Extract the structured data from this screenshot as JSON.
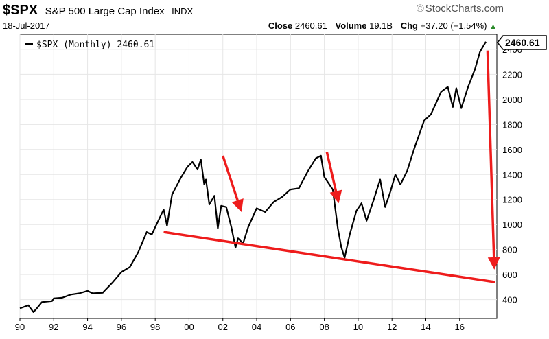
{
  "header": {
    "ticker": "$SPX",
    "name": "S&P 500 Large Cap Index",
    "exchange": "INDX",
    "brand": "StockCharts.com",
    "brand_icon": "copyright-icon",
    "date": "18-Jul-2017",
    "close_label": "Close",
    "close_value": "2460.61",
    "volume_label": "Volume",
    "volume_value": "19.1B",
    "chg_label": "Chg",
    "chg_value": "+37.20 (+1.54%)",
    "chg_arrow": "▲"
  },
  "legend": {
    "label": "$SPX (Monthly) 2460.61"
  },
  "price_tag": "2460.61",
  "colors": {
    "line": "#000000",
    "annotation": "#ee1c1c",
    "grid": "#e6e6e6"
  },
  "chart_data": {
    "type": "line",
    "title": "$SPX S&P 500 Large Cap Index INDX",
    "series": [
      {
        "name": "$SPX (Monthly)",
        "points": [
          [
            1990.0,
            330
          ],
          [
            1990.5,
            355
          ],
          [
            1990.8,
            300
          ],
          [
            1991.0,
            330
          ],
          [
            1991.3,
            380
          ],
          [
            1991.9,
            388
          ],
          [
            1992.0,
            410
          ],
          [
            1992.5,
            415
          ],
          [
            1993.0,
            440
          ],
          [
            1993.5,
            450
          ],
          [
            1994.0,
            470
          ],
          [
            1994.3,
            450
          ],
          [
            1994.9,
            455
          ],
          [
            1995.0,
            470
          ],
          [
            1995.5,
            540
          ],
          [
            1996.0,
            620
          ],
          [
            1996.5,
            660
          ],
          [
            1997.0,
            780
          ],
          [
            1997.5,
            940
          ],
          [
            1997.8,
            920
          ],
          [
            1998.0,
            980
          ],
          [
            1998.5,
            1120
          ],
          [
            1998.7,
            990
          ],
          [
            1998.9,
            1160
          ],
          [
            1999.0,
            1240
          ],
          [
            1999.5,
            1370
          ],
          [
            1999.9,
            1460
          ],
          [
            2000.2,
            1500
          ],
          [
            2000.5,
            1440
          ],
          [
            2000.7,
            1520
          ],
          [
            2000.9,
            1320
          ],
          [
            2001.0,
            1360
          ],
          [
            2001.2,
            1160
          ],
          [
            2001.5,
            1230
          ],
          [
            2001.7,
            970
          ],
          [
            2001.9,
            1150
          ],
          [
            2002.2,
            1140
          ],
          [
            2002.5,
            980
          ],
          [
            2002.75,
            815
          ],
          [
            2002.9,
            890
          ],
          [
            2003.2,
            850
          ],
          [
            2003.5,
            980
          ],
          [
            2004.0,
            1130
          ],
          [
            2004.5,
            1100
          ],
          [
            2005.0,
            1180
          ],
          [
            2005.5,
            1220
          ],
          [
            2006.0,
            1280
          ],
          [
            2006.5,
            1290
          ],
          [
            2007.0,
            1420
          ],
          [
            2007.5,
            1530
          ],
          [
            2007.8,
            1550
          ],
          [
            2008.0,
            1380
          ],
          [
            2008.5,
            1280
          ],
          [
            2008.8,
            970
          ],
          [
            2009.0,
            820
          ],
          [
            2009.2,
            735
          ],
          [
            2009.5,
            920
          ],
          [
            2009.9,
            1110
          ],
          [
            2010.2,
            1170
          ],
          [
            2010.5,
            1030
          ],
          [
            2010.9,
            1190
          ],
          [
            2011.3,
            1360
          ],
          [
            2011.6,
            1140
          ],
          [
            2011.9,
            1260
          ],
          [
            2012.2,
            1400
          ],
          [
            2012.5,
            1320
          ],
          [
            2012.9,
            1430
          ],
          [
            2013.3,
            1600
          ],
          [
            2013.9,
            1830
          ],
          [
            2014.3,
            1880
          ],
          [
            2014.9,
            2060
          ],
          [
            2015.3,
            2100
          ],
          [
            2015.6,
            1940
          ],
          [
            2015.8,
            2090
          ],
          [
            2016.1,
            1930
          ],
          [
            2016.5,
            2100
          ],
          [
            2016.9,
            2240
          ],
          [
            2017.2,
            2380
          ],
          [
            2017.55,
            2460.61
          ]
        ]
      }
    ],
    "x_ticks": [
      "90",
      "92",
      "94",
      "96",
      "98",
      "00",
      "02",
      "04",
      "06",
      "08",
      "10",
      "12",
      "14",
      "16"
    ],
    "y_ticks": [
      400,
      600,
      800,
      1000,
      1200,
      1400,
      1600,
      1800,
      2000,
      2200,
      2400
    ],
    "xlim": [
      1990,
      2018.2
    ],
    "ylim": [
      250,
      2520
    ],
    "grid": true,
    "legend_position": "top-left",
    "annotations": {
      "support_line": [
        [
          1998.5,
          940
        ],
        [
          2018.1,
          540
        ]
      ],
      "arrows": [
        [
          [
            2002.0,
            1550
          ],
          [
            2003.1,
            1100
          ]
        ],
        [
          [
            2008.15,
            1580
          ],
          [
            2008.85,
            1170
          ]
        ],
        [
          [
            2017.65,
            2390
          ],
          [
            2018.05,
            640
          ]
        ]
      ]
    }
  }
}
